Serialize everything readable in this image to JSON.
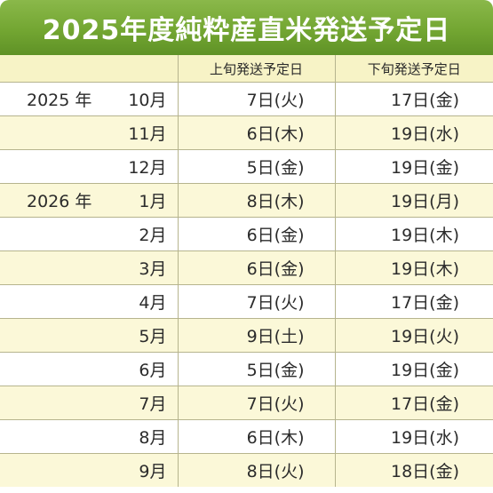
{
  "title": "2025年度純粋産直米発送予定日",
  "headers": {
    "early": "上旬発送予定日",
    "late": "下旬発送予定日"
  },
  "rows": [
    {
      "year": "2025 年",
      "month": "10月",
      "early": "7日(火)",
      "late": "17日(金)"
    },
    {
      "year": "",
      "month": "11月",
      "early": "6日(木)",
      "late": "19日(水)"
    },
    {
      "year": "",
      "month": "12月",
      "early": "5日(金)",
      "late": "19日(金)"
    },
    {
      "year": "2026 年",
      "month": "1月",
      "early": "8日(木)",
      "late": "19日(月)"
    },
    {
      "year": "",
      "month": "2月",
      "early": "6日(金)",
      "late": "19日(木)"
    },
    {
      "year": "",
      "month": "3月",
      "early": "6日(金)",
      "late": "19日(木)"
    },
    {
      "year": "",
      "month": "4月",
      "early": "7日(火)",
      "late": "17日(金)"
    },
    {
      "year": "",
      "month": "5月",
      "early": "9日(土)",
      "late": "19日(火)"
    },
    {
      "year": "",
      "month": "6月",
      "early": "5日(金)",
      "late": "19日(金)"
    },
    {
      "year": "",
      "month": "7月",
      "early": "7日(火)",
      "late": "17日(金)"
    },
    {
      "year": "",
      "month": "8月",
      "early": "6日(木)",
      "late": "19日(水)"
    },
    {
      "year": "",
      "month": "9月",
      "early": "8日(火)",
      "late": "18日(金)"
    }
  ],
  "colors": {
    "title_bg": "#73a632",
    "title_text": "#ffffff",
    "header_bg": "#f7f3c6",
    "stripe_bg": "#fbf8d8",
    "grid_line": "#b6b48e"
  }
}
